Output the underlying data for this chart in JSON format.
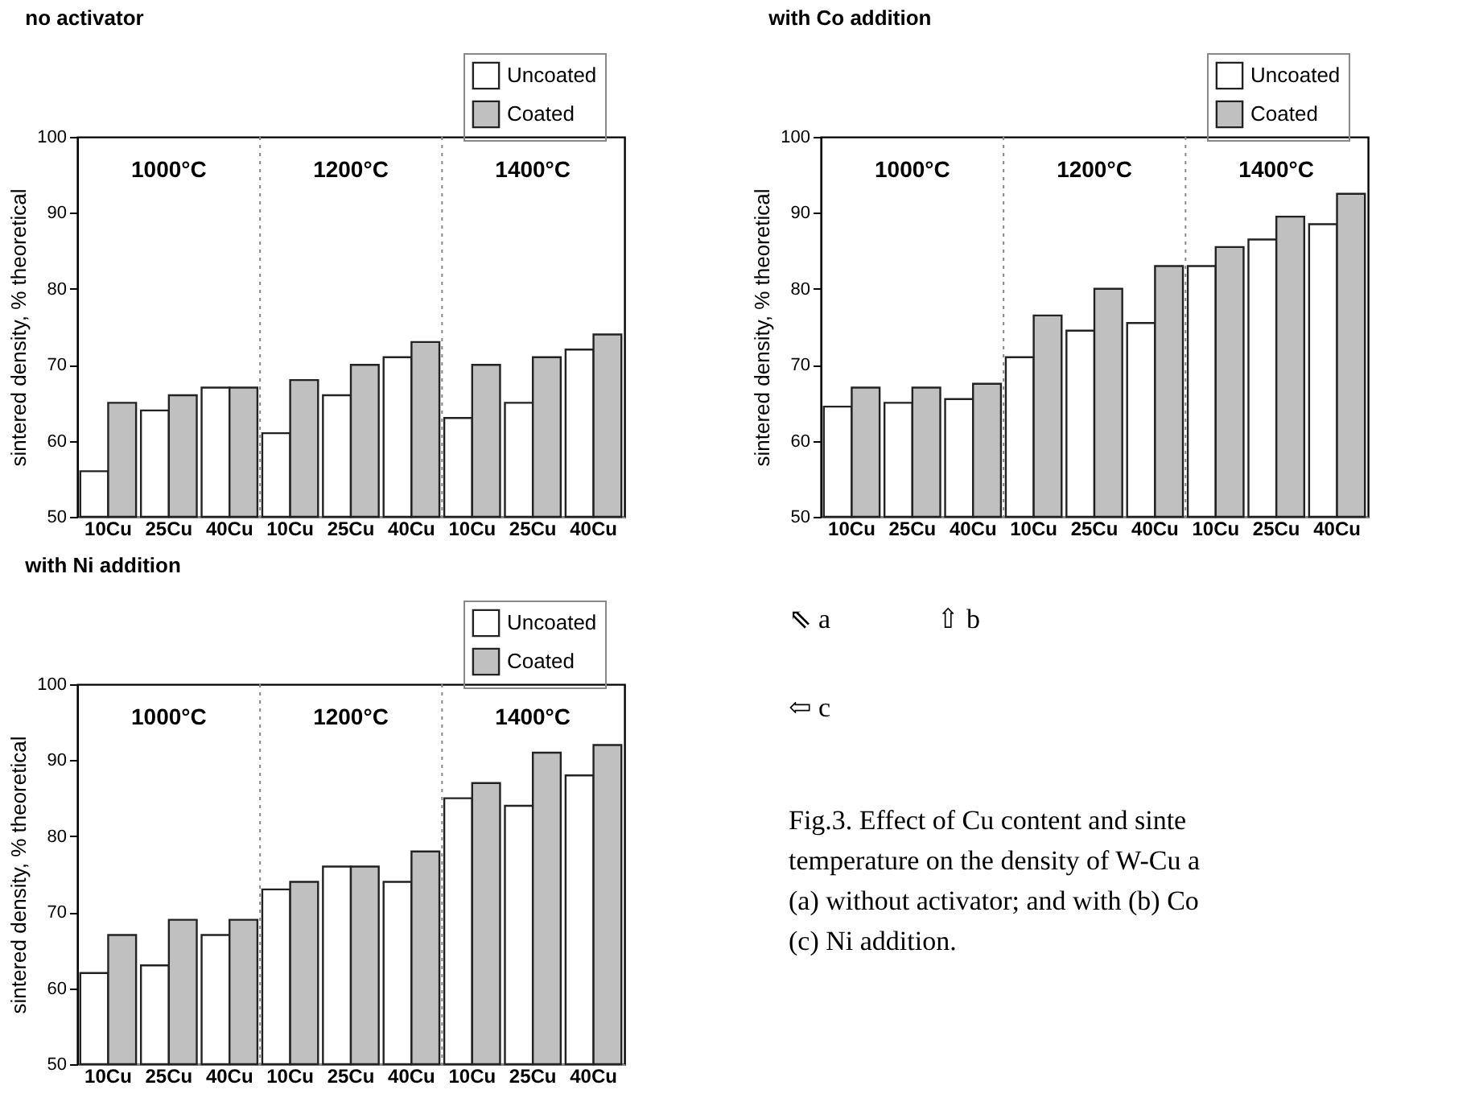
{
  "chart_data": [
    {
      "type": "bar",
      "title": "no activator",
      "ylabel": "sintered density, % theoretical",
      "categories": [
        "10Cu",
        "25Cu",
        "40Cu",
        "10Cu",
        "25Cu",
        "40Cu",
        "10Cu",
        "25Cu",
        "40Cu"
      ],
      "series": [
        {
          "name": "Uncoated",
          "color": "#ffffff",
          "values": [
            56,
            64,
            67,
            61,
            66,
            71,
            63,
            65,
            72
          ]
        },
        {
          "name": "Coated",
          "color": "#c0c0c0",
          "values": [
            65,
            66,
            67,
            68,
            70,
            73,
            70,
            71,
            74
          ]
        }
      ],
      "annotations": [
        "1000°C",
        "1200°C",
        "1400°C"
      ],
      "ylim": [
        50,
        100
      ],
      "yticks": [
        50,
        60,
        70,
        80,
        90,
        100
      ],
      "legend": "top right"
    },
    {
      "type": "bar",
      "title": "with Co addition",
      "ylabel": "sintered density, % theoretical",
      "categories": [
        "10Cu",
        "25Cu",
        "40Cu",
        "10Cu",
        "25Cu",
        "40Cu",
        "10Cu",
        "25Cu",
        "40Cu"
      ],
      "series": [
        {
          "name": "Uncoated",
          "color": "#ffffff",
          "values": [
            64.5,
            65,
            65.5,
            71,
            74.5,
            75.5,
            83,
            86.5,
            88.5
          ]
        },
        {
          "name": "Coated",
          "color": "#c0c0c0",
          "values": [
            67,
            67,
            67.5,
            76.5,
            80,
            83,
            85.5,
            89.5,
            92.5
          ]
        }
      ],
      "annotations": [
        "1000°C",
        "1200°C",
        "1400°C"
      ],
      "ylim": [
        50,
        100
      ],
      "yticks": [
        50,
        60,
        70,
        80,
        90,
        100
      ],
      "legend": "top right"
    },
    {
      "type": "bar",
      "title": "with Ni addition",
      "ylabel": "sintered density, % theoretical",
      "categories": [
        "10Cu",
        "25Cu",
        "40Cu",
        "10Cu",
        "25Cu",
        "40Cu",
        "10Cu",
        "25Cu",
        "40Cu"
      ],
      "series": [
        {
          "name": "Uncoated",
          "color": "#ffffff",
          "values": [
            62,
            63,
            67,
            73,
            76,
            74,
            85,
            84,
            88
          ]
        },
        {
          "name": "Coated",
          "color": "#c0c0c0",
          "values": [
            67,
            69,
            69,
            74,
            76,
            78,
            87,
            91,
            92
          ]
        }
      ],
      "annotations": [
        "1000°C",
        "1200°C",
        "1400°C"
      ],
      "ylim": [
        50,
        100
      ],
      "yticks": [
        50,
        60,
        70,
        80,
        90,
        100
      ],
      "legend": "top right"
    },
    {
      "type": "other",
      "annotations": [
        "⇖ a",
        "⇧ b",
        "⇦ c",
        "Fig.3. Effect of Cu content and sinte",
        "temperature on the density of W-Cu a",
        "(a) without activator; and with (b) Co",
        "(c) Ni addition."
      ]
    }
  ]
}
